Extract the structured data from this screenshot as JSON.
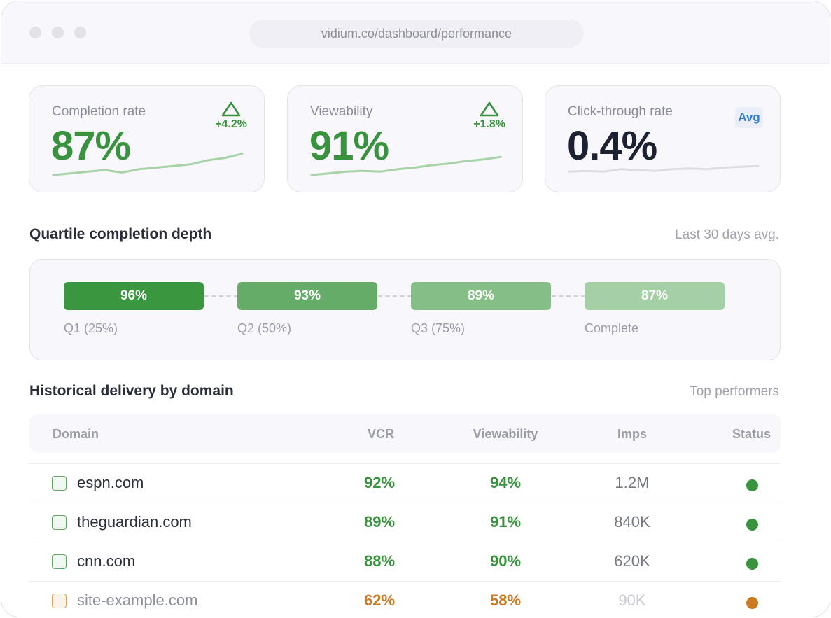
{
  "browser": {
    "url": "vidium.co/dashboard/performance"
  },
  "kpis": [
    {
      "label": "Completion rate",
      "value": "87%",
      "delta": "+4.2%",
      "trend_icon": "triangle-up-icon",
      "sparkline": [
        3,
        4,
        5,
        6,
        4.5,
        6.5,
        7.5,
        8.5,
        9.5,
        12,
        13.5,
        16
      ]
    },
    {
      "label": "Viewability",
      "value": "91%",
      "delta": "+1.8%",
      "trend_icon": "triangle-up-icon",
      "sparkline": [
        3,
        4,
        5,
        5.5,
        5,
        6.5,
        7.5,
        9,
        10,
        11.5,
        12.5,
        14
      ]
    },
    {
      "label": "Click-through rate",
      "value": "0.4%",
      "badge": "Avg",
      "sparkline": [
        5,
        5.5,
        5,
        6.5,
        6,
        5.5,
        6.5,
        7,
        6.5,
        7.5,
        8,
        8.5
      ]
    }
  ],
  "quartiles": {
    "title": "Quartile completion depth",
    "note": "Last 30 days avg.",
    "steps": [
      {
        "label": "Q1 (25%)",
        "value": "96%",
        "color": "#3a963f"
      },
      {
        "label": "Q2 (50%)",
        "value": "93%",
        "color": "#64ac68"
      },
      {
        "label": "Q3 (75%)",
        "value": "89%",
        "color": "#86be88"
      },
      {
        "label": "Complete",
        "value": "87%",
        "color": "#a5d0a6"
      }
    ]
  },
  "delivery": {
    "title": "Historical delivery by domain",
    "note": "Top performers",
    "columns": {
      "domain": "Domain",
      "vcr": "VCR",
      "viewability": "Viewability",
      "imps": "Imps",
      "status": "Status"
    },
    "rows": [
      {
        "domain": "espn.com",
        "vcr": "92%",
        "viewability": "94%",
        "imps": "1.2M",
        "status": "good"
      },
      {
        "domain": "theguardian.com",
        "vcr": "89%",
        "viewability": "91%",
        "imps": "840K",
        "status": "good"
      },
      {
        "domain": "cnn.com",
        "vcr": "88%",
        "viewability": "90%",
        "imps": "620K",
        "status": "good"
      },
      {
        "domain": "site-example.com",
        "vcr": "62%",
        "viewability": "58%",
        "imps": "90K",
        "status": "warning"
      }
    ]
  },
  "colors": {
    "positive": "#39933e",
    "warning": "#c97b24",
    "muted": "#c4c6ce",
    "spark_green": "#a8d3a9",
    "spark_grey": "#dcdce2"
  }
}
